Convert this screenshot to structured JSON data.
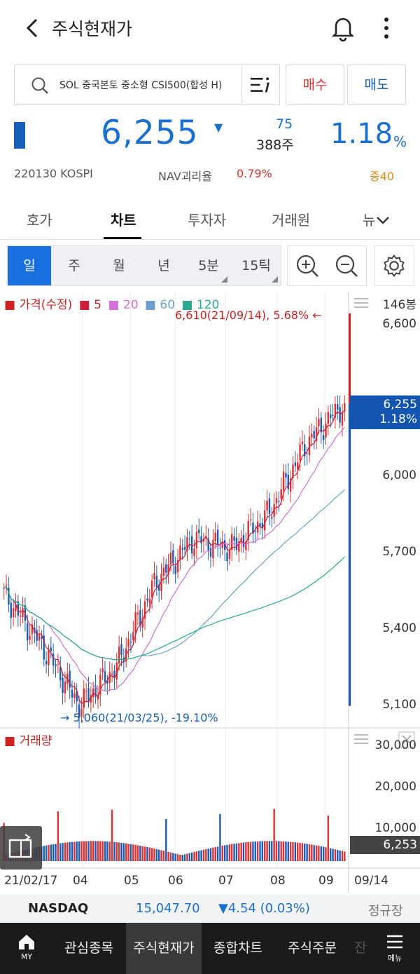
{
  "header": {
    "title": "주식현재가"
  },
  "search": {
    "text": "SOL 중국본토 중소형 CSI500(합성 H)",
    "buy_label": "매수",
    "sell_label": "매도"
  },
  "quote": {
    "price": "6,255",
    "direction": "▼",
    "change": "75",
    "volume": "388주",
    "rate": "1.18",
    "rate_unit": "%",
    "code_market": "220130  KOSPI",
    "nav_label": "NAV괴리율",
    "nav_value": "0.79%",
    "margin": "증40"
  },
  "tabs": [
    {
      "label": "호가"
    },
    {
      "label": "차트"
    },
    {
      "label": "투자자"
    },
    {
      "label": "거래원"
    },
    {
      "label": "뉴"
    }
  ],
  "periods": [
    {
      "label": "일"
    },
    {
      "label": "주"
    },
    {
      "label": "월"
    },
    {
      "label": "년"
    },
    {
      "label": "5분"
    },
    {
      "label": "15틱"
    }
  ],
  "chart": {
    "legend_title": "가격(수정)",
    "ma_labels": [
      "5",
      "20",
      "60",
      "120"
    ],
    "bar_count": "146봉",
    "high_annotation": "6,610(21/09/14), 5.68%",
    "low_annotation": "5,060(21/03/25), -19.10%",
    "current_price": "6,255",
    "current_rate": "1.18%",
    "volume_title": "거래량",
    "volume_current": "6,253",
    "price_ticks": [
      "6,600",
      "6,000",
      "5,700",
      "5,400",
      "5,100"
    ],
    "volume_ticks": [
      "30,000",
      "20,000",
      "10,000"
    ],
    "x_ticks": [
      "21/02/17",
      "04",
      "05",
      "06",
      "07",
      "08",
      "09",
      "09/14"
    ]
  },
  "colors": {
    "up": "#e0302f",
    "down": "#1a5db8",
    "ma5": "#cc1f3a",
    "ma20": "#d070d8",
    "ma60": "#6aa0cc",
    "ma120": "#2aa890"
  },
  "index": {
    "name": "NASDAQ",
    "value": "15,047.70",
    "change": "▼4.54 (0.03%)",
    "session": "정규장"
  },
  "bottom_nav": {
    "my": "MY",
    "items": [
      "관심종목",
      "주식현재가",
      "종합차트",
      "주식주문",
      "잔"
    ],
    "menu": "메뉴"
  },
  "chart_data": {
    "type": "candlestick",
    "x_range": [
      "21/02/17",
      "09/14"
    ],
    "y_range_price": [
      5060,
      6610
    ],
    "price_points": [
      {
        "x": "21/02/17",
        "close": 5500
      },
      {
        "x": "03/10",
        "close": 5300
      },
      {
        "x": "03/25",
        "close": 5060
      },
      {
        "x": "04",
        "close": 5220
      },
      {
        "x": "05",
        "close": 5550
      },
      {
        "x": "06",
        "close": 5720
      },
      {
        "x": "07",
        "close": 5680
      },
      {
        "x": "08",
        "close": 5820
      },
      {
        "x": "09",
        "close": 6100
      },
      {
        "x": "09/14",
        "close": 6255
      }
    ],
    "volume_axis": [
      0,
      30000
    ]
  }
}
